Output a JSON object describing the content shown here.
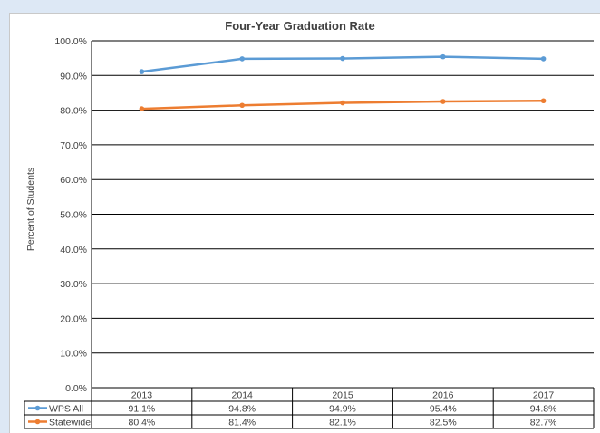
{
  "chart_data": {
    "type": "line",
    "title": "Four-Year Graduation Rate",
    "ylabel": "Percent of Students",
    "xlabel": "",
    "categories": [
      "2013",
      "2014",
      "2015",
      "2016",
      "2017"
    ],
    "ylim": [
      0,
      100
    ],
    "yticks": [
      "0.0%",
      "10.0%",
      "20.0%",
      "30.0%",
      "40.0%",
      "50.0%",
      "60.0%",
      "70.0%",
      "80.0%",
      "90.0%",
      "100.0%"
    ],
    "grid": true,
    "legend": "data-table",
    "series": [
      {
        "name": "WPS All",
        "color": "#5b9bd5",
        "values": [
          91.1,
          94.8,
          94.9,
          95.4,
          94.8
        ],
        "labels": [
          "91.1%",
          "94.8%",
          "94.9%",
          "95.4%",
          "94.8%"
        ]
      },
      {
        "name": "Statewide",
        "color": "#ed7d31",
        "values": [
          80.4,
          81.4,
          82.1,
          82.5,
          82.7
        ],
        "labels": [
          "80.4%",
          "81.4%",
          "82.1%",
          "82.5%",
          "82.7%"
        ]
      }
    ]
  }
}
